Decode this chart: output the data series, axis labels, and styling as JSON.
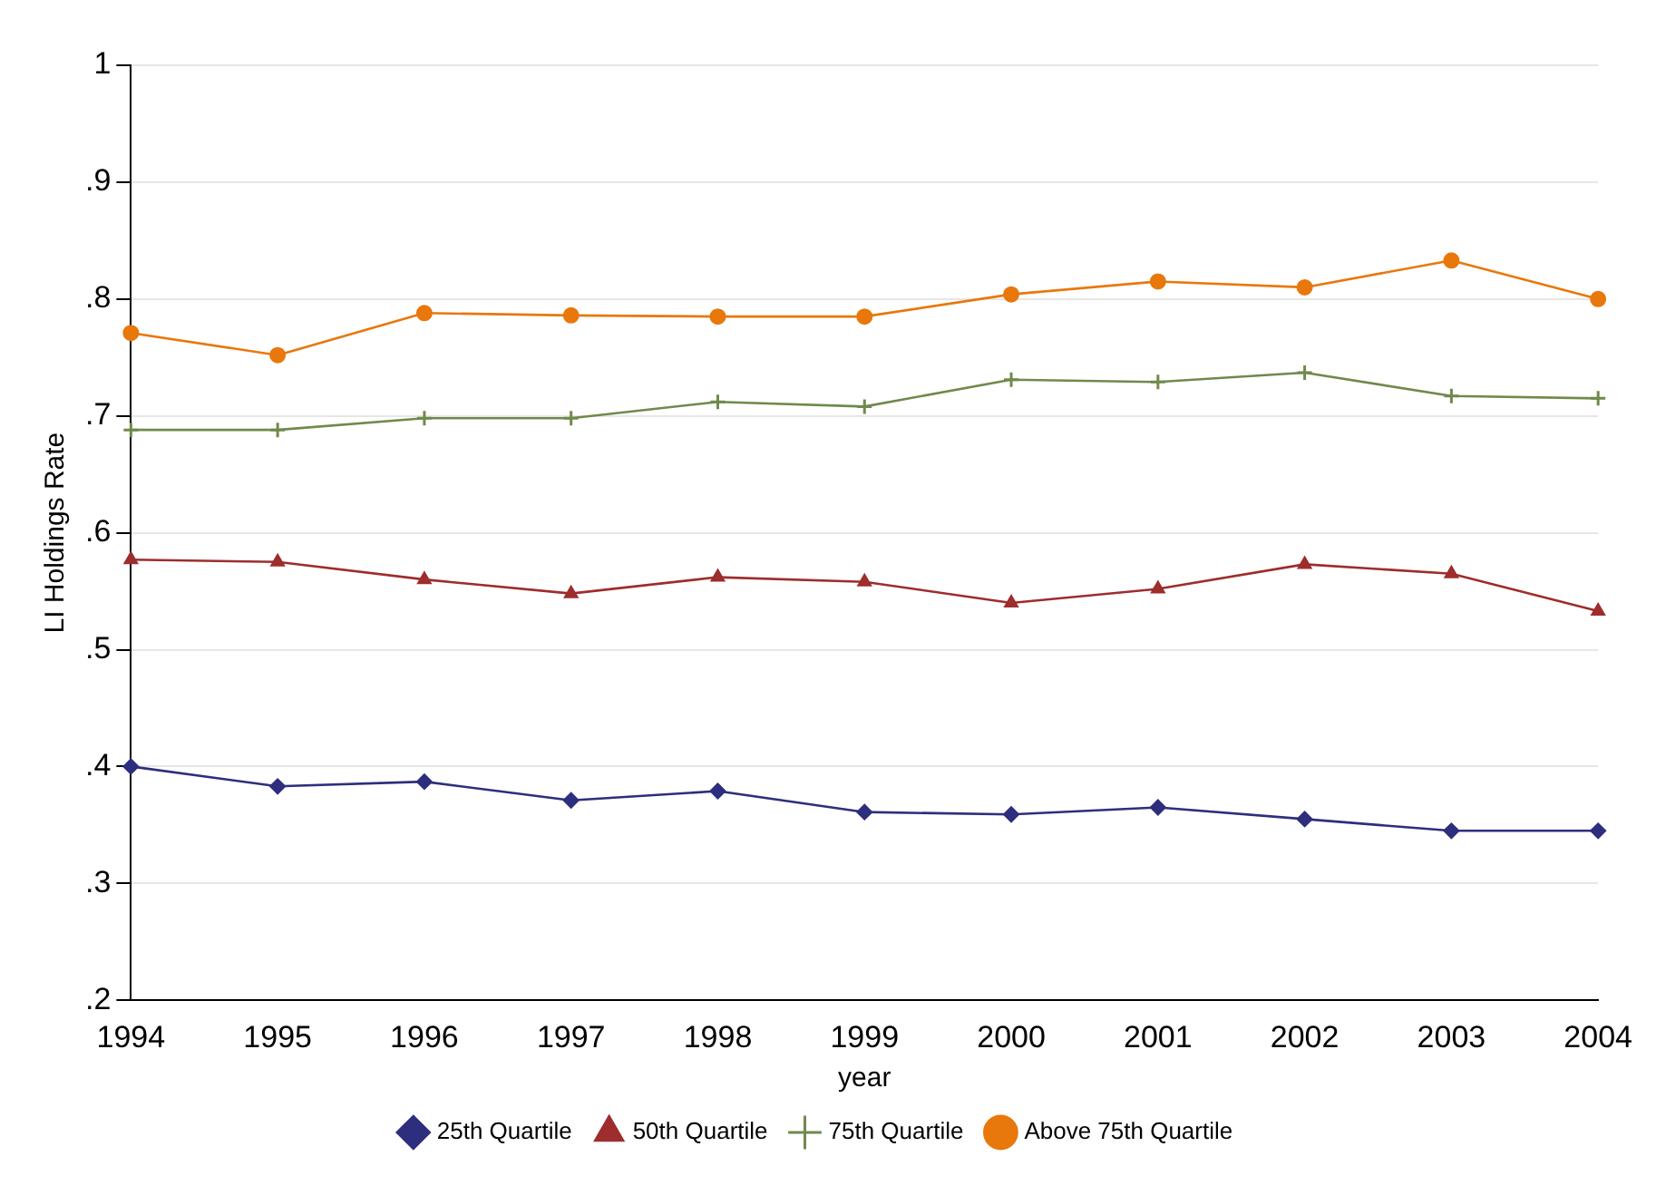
{
  "chart_data": {
    "type": "line",
    "xlabel": "year",
    "ylabel": "LI Holdings Rate",
    "categories": [
      "1994",
      "1995",
      "1996",
      "1997",
      "1998",
      "1999",
      "2000",
      "2001",
      "2002",
      "2003",
      "2004"
    ],
    "series": [
      {
        "name": "25th Quartile",
        "color": "#2e2e7e",
        "marker": "diamond",
        "values": [
          0.4,
          0.383,
          0.387,
          0.371,
          0.379,
          0.361,
          0.359,
          0.365,
          0.355,
          0.345,
          0.345
        ]
      },
      {
        "name": "50th Quartile",
        "color": "#9e2d2d",
        "marker": "triangle",
        "values": [
          0.577,
          0.575,
          0.56,
          0.548,
          0.562,
          0.558,
          0.54,
          0.552,
          0.573,
          0.565,
          0.533
        ]
      },
      {
        "name": "75th Quartile",
        "color": "#6f8a4c",
        "marker": "cross",
        "values": [
          0.688,
          0.688,
          0.698,
          0.698,
          0.712,
          0.708,
          0.731,
          0.729,
          0.737,
          0.717,
          0.715
        ]
      },
      {
        "name": "Above 75th Quartile",
        "color": "#e8780c",
        "marker": "circle",
        "values": [
          0.771,
          0.752,
          0.788,
          0.786,
          0.785,
          0.785,
          0.804,
          0.815,
          0.81,
          0.833,
          0.8
        ]
      }
    ],
    "ylim": [
      0.2,
      1
    ],
    "yticks": [
      {
        "value": 0.2,
        "label": ".2"
      },
      {
        "value": 0.3,
        "label": ".3"
      },
      {
        "value": 0.4,
        "label": ".4"
      },
      {
        "value": 0.5,
        "label": ".5"
      },
      {
        "value": 0.6,
        "label": ".6"
      },
      {
        "value": 0.7,
        "label": ".7"
      },
      {
        "value": 0.8,
        "label": ".8"
      },
      {
        "value": 0.9,
        "label": ".9"
      },
      {
        "value": 1,
        "label": "1"
      }
    ],
    "grid": "y",
    "legend": "bottom",
    "line_style": "solid"
  }
}
